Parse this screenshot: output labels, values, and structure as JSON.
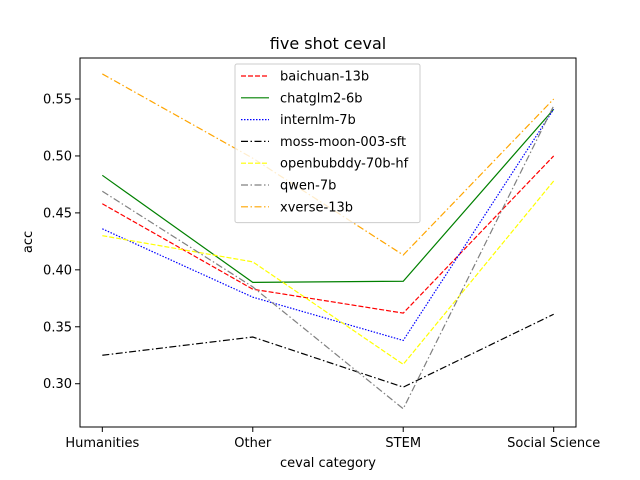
{
  "chart_data": {
    "type": "line",
    "title": "five shot ceval",
    "xlabel": "ceval category",
    "ylabel": "acc",
    "categories": [
      "Humanities",
      "Other",
      "STEM",
      "Social Science"
    ],
    "ylim": [
      0.262,
      0.586
    ],
    "yticks": [
      0.3,
      0.35,
      0.4,
      0.45,
      0.5,
      0.55
    ],
    "ytick_labels": [
      "0.30",
      "0.35",
      "0.40",
      "0.45",
      "0.50",
      "0.55"
    ],
    "grid": false,
    "legend_position": "top-center",
    "series": [
      {
        "name": "baichuan-13b",
        "values": [
          0.458,
          0.383,
          0.362,
          0.5
        ],
        "color": "#ff0000",
        "dash": "dashed"
      },
      {
        "name": "chatglm2-6b",
        "values": [
          0.483,
          0.389,
          0.39,
          0.541
        ],
        "color": "#008000",
        "dash": "solid"
      },
      {
        "name": "internlm-7b",
        "values": [
          0.436,
          0.376,
          0.338,
          0.541
        ],
        "color": "#0000ff",
        "dash": "dotted"
      },
      {
        "name": "moss-moon-003-sft",
        "values": [
          0.325,
          0.341,
          0.297,
          0.361
        ],
        "color": "#000000",
        "dash": "dashdot"
      },
      {
        "name": "openbubddy-70b-hf",
        "values": [
          0.43,
          0.407,
          0.317,
          0.478
        ],
        "color": "#ffff00",
        "dash": "dashed"
      },
      {
        "name": "qwen-7b",
        "values": [
          0.469,
          0.385,
          0.278,
          0.544
        ],
        "color": "#808080",
        "dash": "dashdot"
      },
      {
        "name": "xverse-13b",
        "values": [
          0.572,
          0.498,
          0.413,
          0.55
        ],
        "color": "#ffa500",
        "dash": "dashdot"
      }
    ]
  }
}
